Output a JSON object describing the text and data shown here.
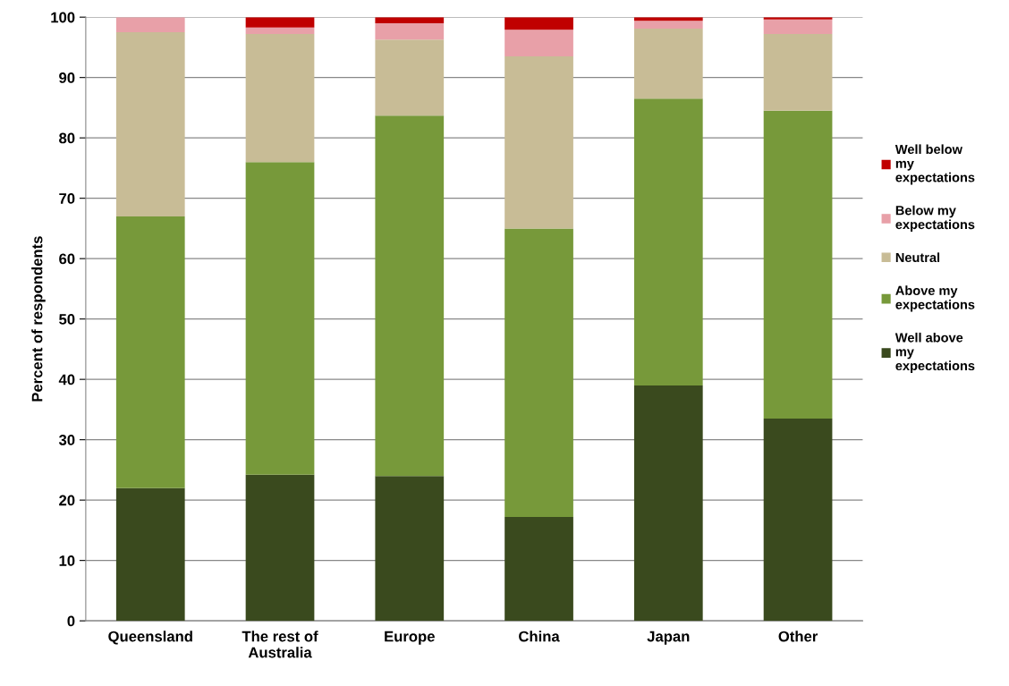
{
  "chart_data": {
    "type": "bar",
    "stacked": true,
    "ylabel": "Percent of respondents",
    "categories": [
      "Queensland",
      "The rest of Australia",
      "Europe",
      "China",
      "Japan",
      "Other"
    ],
    "series": [
      {
        "name": "Well above my expectations",
        "color": "#3a4a1e",
        "values": [
          22,
          24.2,
          24,
          17.2,
          39,
          33.5
        ]
      },
      {
        "name": "Above my expectations",
        "color": "#77993a",
        "values": [
          45,
          51.8,
          59.7,
          47.8,
          47.5,
          51
        ]
      },
      {
        "name": "Neutral",
        "color": "#c8bc96",
        "values": [
          30.5,
          21.2,
          12.6,
          28.5,
          11.6,
          12.7
        ]
      },
      {
        "name": "Below my expectations",
        "color": "#e8a0a8",
        "values": [
          2.5,
          1.1,
          2.7,
          4.4,
          1.3,
          2.4
        ]
      },
      {
        "name": "Well below my expectations",
        "color": "#c00000",
        "values": [
          0,
          1.7,
          1,
          2.1,
          0.6,
          0.4
        ]
      }
    ],
    "ylim": [
      0,
      100
    ],
    "yticks": [
      0,
      10,
      20,
      30,
      40,
      50,
      60,
      70,
      80,
      90,
      100
    ],
    "grid": "y",
    "legend": "right"
  }
}
